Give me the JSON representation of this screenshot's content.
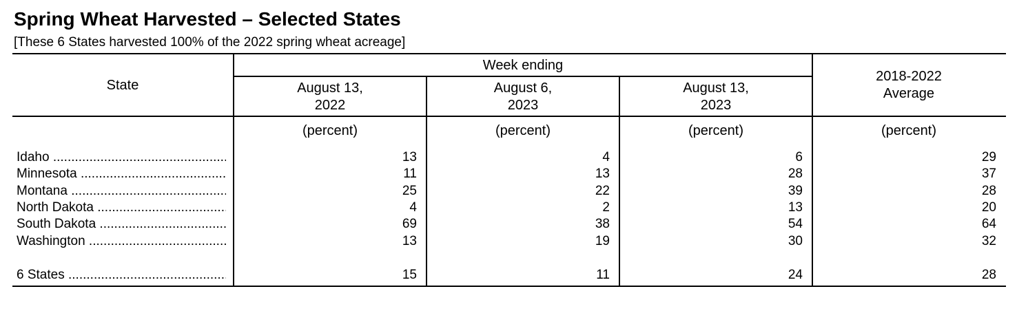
{
  "title": "Spring Wheat Harvested – Selected States",
  "subtitle": "[These 6 States harvested 100% of the 2022 spring wheat acreage]",
  "headers": {
    "state": "State",
    "week_ending": "Week ending",
    "col1": "August 13,\n2022",
    "col2": "August 6,\n2023",
    "col3": "August 13,\n2023",
    "col4": "2018-2022\nAverage",
    "unit": "(percent)"
  },
  "rows": [
    {
      "state": "Idaho",
      "values": [
        "13",
        "4",
        "6",
        "29"
      ]
    },
    {
      "state": "Minnesota",
      "values": [
        "11",
        "13",
        "28",
        "37"
      ]
    },
    {
      "state": "Montana",
      "values": [
        "25",
        "22",
        "39",
        "28"
      ]
    },
    {
      "state": "North Dakota",
      "values": [
        "4",
        "2",
        "13",
        "20"
      ]
    },
    {
      "state": "South Dakota",
      "values": [
        "69",
        "38",
        "54",
        "64"
      ]
    },
    {
      "state": "Washington",
      "values": [
        "13",
        "19",
        "30",
        "32"
      ]
    }
  ],
  "total": {
    "state": "6 States",
    "values": [
      "15",
      "11",
      "24",
      "28"
    ]
  }
}
